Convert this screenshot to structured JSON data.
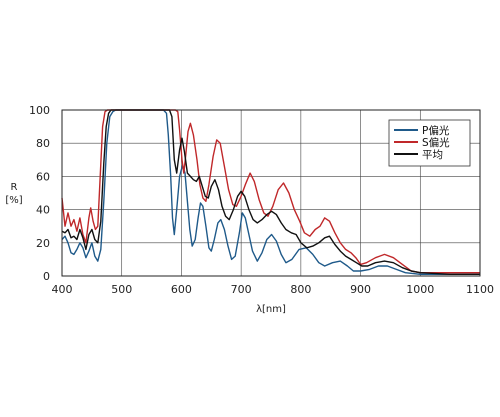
{
  "chart_data": {
    "type": "line",
    "title": "",
    "xlabel": "λ[nm]",
    "ylabel_line1": "R",
    "ylabel_line2": "[%]",
    "xlim": [
      400,
      1100
    ],
    "ylim": [
      0,
      100
    ],
    "xticks": [
      400,
      500,
      600,
      700,
      800,
      900,
      1000,
      1100
    ],
    "yticks": [
      0,
      20,
      40,
      60,
      80,
      100
    ],
    "grid": true,
    "legend_position": "top-right",
    "series": [
      {
        "name": "P偏光",
        "color": "#1f5a8a",
        "points": [
          [
            400,
            22
          ],
          [
            405,
            24
          ],
          [
            410,
            20
          ],
          [
            415,
            14
          ],
          [
            420,
            13
          ],
          [
            425,
            16
          ],
          [
            430,
            20
          ],
          [
            435,
            17
          ],
          [
            440,
            11
          ],
          [
            445,
            15
          ],
          [
            450,
            20
          ],
          [
            455,
            12
          ],
          [
            460,
            9
          ],
          [
            465,
            16
          ],
          [
            470,
            45
          ],
          [
            475,
            80
          ],
          [
            480,
            96
          ],
          [
            485,
            99
          ],
          [
            490,
            100
          ],
          [
            570,
            100
          ],
          [
            575,
            98
          ],
          [
            578,
            85
          ],
          [
            582,
            60
          ],
          [
            585,
            35
          ],
          [
            588,
            25
          ],
          [
            592,
            40
          ],
          [
            597,
            60
          ],
          [
            602,
            67
          ],
          [
            606,
            62
          ],
          [
            610,
            45
          ],
          [
            614,
            28
          ],
          [
            618,
            18
          ],
          [
            623,
            22
          ],
          [
            628,
            35
          ],
          [
            632,
            44
          ],
          [
            636,
            42
          ],
          [
            641,
            30
          ],
          [
            646,
            17
          ],
          [
            650,
            15
          ],
          [
            655,
            22
          ],
          [
            661,
            32
          ],
          [
            666,
            34
          ],
          [
            672,
            28
          ],
          [
            678,
            18
          ],
          [
            684,
            10
          ],
          [
            690,
            12
          ],
          [
            697,
            26
          ],
          [
            702,
            38
          ],
          [
            707,
            35
          ],
          [
            713,
            25
          ],
          [
            719,
            15
          ],
          [
            727,
            9
          ],
          [
            735,
            14
          ],
          [
            743,
            22
          ],
          [
            751,
            25
          ],
          [
            759,
            21
          ],
          [
            767,
            13
          ],
          [
            775,
            8
          ],
          [
            785,
            10
          ],
          [
            797,
            16
          ],
          [
            809,
            17
          ],
          [
            820,
            13
          ],
          [
            830,
            8
          ],
          [
            840,
            6
          ],
          [
            853,
            8
          ],
          [
            866,
            9
          ],
          [
            878,
            6
          ],
          [
            888,
            3
          ],
          [
            900,
            3
          ],
          [
            915,
            4
          ],
          [
            930,
            6
          ],
          [
            945,
            6
          ],
          [
            960,
            4
          ],
          [
            975,
            2
          ],
          [
            1000,
            1
          ],
          [
            1050,
            1
          ],
          [
            1100,
            1
          ]
        ]
      },
      {
        "name": "S偏光",
        "color": "#c0282a",
        "points": [
          [
            400,
            47
          ],
          [
            405,
            30
          ],
          [
            410,
            38
          ],
          [
            415,
            30
          ],
          [
            420,
            34
          ],
          [
            425,
            27
          ],
          [
            430,
            35
          ],
          [
            435,
            25
          ],
          [
            440,
            20
          ],
          [
            445,
            35
          ],
          [
            448,
            41
          ],
          [
            452,
            33
          ],
          [
            456,
            28
          ],
          [
            460,
            30
          ],
          [
            464,
            60
          ],
          [
            468,
            90
          ],
          [
            472,
            99
          ],
          [
            476,
            100
          ],
          [
            590,
            100
          ],
          [
            594,
            99
          ],
          [
            597,
            88
          ],
          [
            601,
            70
          ],
          [
            604,
            62
          ],
          [
            607,
            72
          ],
          [
            611,
            87
          ],
          [
            615,
            92
          ],
          [
            620,
            85
          ],
          [
            626,
            70
          ],
          [
            631,
            55
          ],
          [
            636,
            47
          ],
          [
            641,
            45
          ],
          [
            646,
            55
          ],
          [
            653,
            72
          ],
          [
            659,
            82
          ],
          [
            665,
            80
          ],
          [
            672,
            66
          ],
          [
            679,
            52
          ],
          [
            686,
            43
          ],
          [
            692,
            42
          ],
          [
            700,
            48
          ],
          [
            707,
            55
          ],
          [
            715,
            62
          ],
          [
            722,
            57
          ],
          [
            730,
            46
          ],
          [
            738,
            38
          ],
          [
            745,
            36
          ],
          [
            753,
            42
          ],
          [
            762,
            52
          ],
          [
            771,
            56
          ],
          [
            780,
            50
          ],
          [
            789,
            40
          ],
          [
            798,
            33
          ],
          [
            806,
            26
          ],
          [
            815,
            24
          ],
          [
            824,
            28
          ],
          [
            832,
            30
          ],
          [
            840,
            35
          ],
          [
            848,
            33
          ],
          [
            857,
            26
          ],
          [
            866,
            20
          ],
          [
            875,
            16
          ],
          [
            884,
            14
          ],
          [
            892,
            11
          ],
          [
            900,
            7
          ],
          [
            910,
            8
          ],
          [
            925,
            11
          ],
          [
            940,
            13
          ],
          [
            955,
            11
          ],
          [
            970,
            7
          ],
          [
            985,
            3
          ],
          [
            1000,
            2
          ],
          [
            1050,
            2
          ],
          [
            1100,
            2
          ]
        ]
      },
      {
        "name": "平均",
        "color": "#111111",
        "points": [
          [
            400,
            27
          ],
          [
            405,
            26
          ],
          [
            410,
            28
          ],
          [
            415,
            23
          ],
          [
            420,
            24
          ],
          [
            425,
            22
          ],
          [
            430,
            28
          ],
          [
            435,
            23
          ],
          [
            440,
            16
          ],
          [
            445,
            25
          ],
          [
            450,
            28
          ],
          [
            455,
            22
          ],
          [
            460,
            20
          ],
          [
            465,
            33
          ],
          [
            470,
            68
          ],
          [
            474,
            90
          ],
          [
            478,
            98
          ],
          [
            482,
            100
          ],
          [
            580,
            100
          ],
          [
            584,
            96
          ],
          [
            588,
            70
          ],
          [
            592,
            62
          ],
          [
            597,
            76
          ],
          [
            601,
            83
          ],
          [
            605,
            75
          ],
          [
            610,
            62
          ],
          [
            615,
            60
          ],
          [
            620,
            58
          ],
          [
            625,
            57
          ],
          [
            630,
            60
          ],
          [
            635,
            54
          ],
          [
            640,
            48
          ],
          [
            645,
            47
          ],
          [
            650,
            54
          ],
          [
            656,
            58
          ],
          [
            662,
            52
          ],
          [
            668,
            42
          ],
          [
            674,
            36
          ],
          [
            680,
            34
          ],
          [
            687,
            40
          ],
          [
            694,
            48
          ],
          [
            700,
            51
          ],
          [
            706,
            48
          ],
          [
            713,
            40
          ],
          [
            720,
            34
          ],
          [
            727,
            32
          ],
          [
            735,
            34
          ],
          [
            743,
            37
          ],
          [
            751,
            39
          ],
          [
            759,
            37
          ],
          [
            767,
            32
          ],
          [
            775,
            28
          ],
          [
            784,
            26
          ],
          [
            792,
            25
          ],
          [
            800,
            20
          ],
          [
            810,
            17
          ],
          [
            820,
            18
          ],
          [
            830,
            20
          ],
          [
            840,
            23
          ],
          [
            848,
            24
          ],
          [
            857,
            19
          ],
          [
            866,
            15
          ],
          [
            875,
            12
          ],
          [
            884,
            10
          ],
          [
            893,
            8
          ],
          [
            902,
            6
          ],
          [
            912,
            6
          ],
          [
            925,
            8
          ],
          [
            940,
            9
          ],
          [
            955,
            8
          ],
          [
            970,
            5
          ],
          [
            985,
            3
          ],
          [
            1000,
            2
          ],
          [
            1050,
            1
          ],
          [
            1100,
            1
          ]
        ]
      }
    ]
  }
}
